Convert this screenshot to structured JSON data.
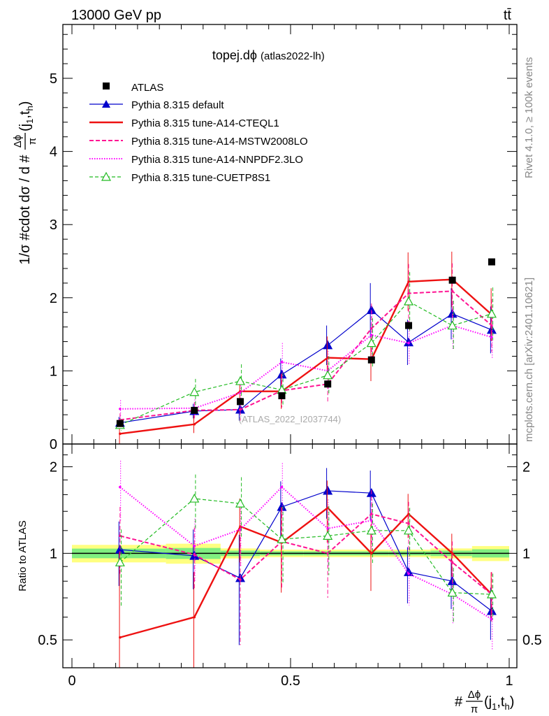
{
  "header": {
    "energy": "13000 GeV pp",
    "process": "tt̄"
  },
  "side": {
    "rivet": "Rivet 4.1.0, ≥ 100k events",
    "mcplots": "mcplots.cern.ch [arXiv:2401.10621]"
  },
  "chart_data": {
    "type": "line",
    "title_main": "topej.dϕ",
    "title_sub": "(atlas2022-lh)",
    "watermark": "(ATLAS_2022_I2037744)",
    "ylabel": "1/σ #cdot dσ / d #Δϕ/π(j1,th)",
    "ylabel_parts": {
      "prefix": "1/σ #cdot dσ / d #",
      "frac_num": "Δϕ",
      "frac_den": "π",
      "suffix": "(j",
      "sub1": "1",
      "comma": ",t",
      "sub2": "h",
      "close": ")"
    },
    "xlabel_parts": {
      "prefix": "#",
      "frac_num": "Δϕ",
      "frac_den": "π",
      "suffix": "(j",
      "sub1": "1",
      "comma": ",t",
      "sub2": "h",
      "close": ")"
    },
    "ratio_ylabel": "Ratio to ATLAS",
    "xlim": [
      0,
      1
    ],
    "ylim": [
      0,
      5.8
    ],
    "ratio_ylim": [
      0.4,
      2.4
    ],
    "x_ticks": [
      "0",
      "0.5",
      "1"
    ],
    "y_ticks": [
      "0",
      "1",
      "2",
      "3",
      "4",
      "5"
    ],
    "ratio_ticks": [
      "0.5",
      "1",
      "2"
    ],
    "bin_edges": [
      0,
      0.215,
      0.34,
      0.43,
      0.53,
      0.635,
      0.725,
      0.82,
      0.915,
      1.0
    ],
    "x": [
      0.11,
      0.28,
      0.385,
      0.48,
      0.585,
      0.685,
      0.77,
      0.87,
      0.96
    ],
    "data": {
      "name": "ATLAS",
      "values": [
        0.28,
        0.46,
        0.58,
        0.66,
        0.82,
        1.15,
        1.62,
        2.24,
        2.49
      ]
    },
    "band_rel": [
      0.07,
      0.08,
      0.04,
      0.03,
      0.03,
      0.03,
      0.03,
      0.04,
      0.06
    ],
    "series": [
      {
        "name": "Pythia 8.315 default",
        "color": "#0000cc",
        "dash": "",
        "width": 1.2,
        "marker": "triangle-filled",
        "values": [
          0.29,
          0.45,
          0.47,
          0.95,
          1.35,
          1.83,
          1.39,
          1.78,
          1.56
        ],
        "errors": [
          0.08,
          0.1,
          0.15,
          0.22,
          0.27,
          0.37,
          0.31,
          0.35,
          0.32
        ],
        "ratio_errors": [
          0.26,
          0.23,
          0.34,
          0.33,
          0.33,
          0.32,
          0.19,
          0.16,
          0.13
        ]
      },
      {
        "name": "Pythia 8.315 tune-A14-CTEQL1",
        "color": "#ee1111",
        "dash": "",
        "width": 2.4,
        "marker": "none",
        "values": [
          0.14,
          0.27,
          0.72,
          0.72,
          1.18,
          1.16,
          2.22,
          2.25,
          1.77
        ],
        "errors": [
          0.14,
          0.12,
          0.18,
          0.24,
          0.29,
          0.3,
          0.4,
          0.38,
          0.36
        ],
        "ratio_errors": [
          0.5,
          0.26,
          0.31,
          0.36,
          0.35,
          0.26,
          0.24,
          0.17,
          0.14
        ]
      },
      {
        "name": "Pythia 8.315 tune-A14-MSTW2008LO",
        "color": "#ff1493",
        "dash": "6,3",
        "width": 2.0,
        "marker": "none",
        "values": [
          0.33,
          0.46,
          0.47,
          0.73,
          0.82,
          1.58,
          2.06,
          2.09,
          1.62
        ],
        "errors": [
          0.09,
          0.11,
          0.15,
          0.23,
          0.25,
          0.34,
          0.4,
          0.38,
          0.36
        ],
        "ratio_errors": [
          0.3,
          0.24,
          0.33,
          0.34,
          0.3,
          0.29,
          0.24,
          0.17,
          0.14
        ]
      },
      {
        "name": "Pythia 8.315 tune-A14-NNPDF2.3LO",
        "color": "#ff00ff",
        "dash": "1.5,2",
        "width": 2.0,
        "marker": "none",
        "values": [
          0.48,
          0.49,
          0.7,
          1.12,
          1.0,
          1.49,
          1.38,
          1.62,
          1.46
        ],
        "errors": [
          0.12,
          0.12,
          0.17,
          0.26,
          0.27,
          0.32,
          0.3,
          0.33,
          0.3
        ],
        "ratio_errors": [
          0.4,
          0.26,
          0.31,
          0.36,
          0.32,
          0.27,
          0.19,
          0.15,
          0.13
        ]
      },
      {
        "name": "Pythia 8.315 tune-CUETP8S1",
        "color": "#22bb22",
        "dash": "5,3",
        "width": 1.2,
        "marker": "triangle-open",
        "values": [
          0.26,
          0.71,
          0.86,
          0.74,
          0.94,
          1.38,
          1.95,
          1.62,
          1.78
        ],
        "errors": [
          0.08,
          0.18,
          0.23,
          0.23,
          0.26,
          0.34,
          0.4,
          0.34,
          0.36
        ],
        "ratio_errors": [
          0.28,
          0.33,
          0.35,
          0.34,
          0.31,
          0.29,
          0.24,
          0.16,
          0.13
        ]
      }
    ],
    "ratio": [
      [
        1.03,
        0.98,
        0.82,
        1.45,
        1.65,
        1.62,
        0.86,
        0.8,
        0.63
      ],
      [
        0.51,
        0.6,
        1.24,
        1.09,
        1.44,
        1.0,
        1.37,
        1.0,
        0.72
      ],
      [
        1.15,
        0.99,
        0.81,
        1.1,
        1.0,
        1.37,
        1.27,
        0.93,
        0.72
      ],
      [
        1.7,
        1.06,
        1.21,
        1.7,
        1.22,
        1.3,
        0.85,
        0.72,
        0.59
      ],
      [
        0.93,
        1.55,
        1.49,
        1.12,
        1.15,
        1.2,
        1.2,
        0.73,
        0.72
      ]
    ],
    "colors": {
      "band_yellow": "#ffff80",
      "band_green": "#80ee80",
      "frame": "#000000",
      "side_text": "#888888"
    }
  }
}
